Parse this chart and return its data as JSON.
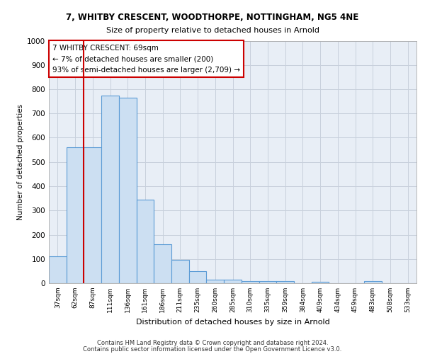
{
  "title1": "7, WHITBY CRESCENT, WOODTHORPE, NOTTINGHAM, NG5 4NE",
  "title2": "Size of property relative to detached houses in Arnold",
  "xlabel": "Distribution of detached houses by size in Arnold",
  "ylabel": "Number of detached properties",
  "categories": [
    "37sqm",
    "62sqm",
    "87sqm",
    "111sqm",
    "136sqm",
    "161sqm",
    "186sqm",
    "211sqm",
    "235sqm",
    "260sqm",
    "285sqm",
    "310sqm",
    "335sqm",
    "359sqm",
    "384sqm",
    "409sqm",
    "434sqm",
    "459sqm",
    "483sqm",
    "508sqm",
    "533sqm"
  ],
  "values": [
    110,
    560,
    560,
    775,
    765,
    345,
    160,
    95,
    50,
    15,
    15,
    10,
    10,
    8,
    0,
    5,
    0,
    0,
    10,
    0,
    0
  ],
  "bar_color": "#ccdff2",
  "bar_edge_color": "#5b9bd5",
  "grid_color": "#c8d0dc",
  "bg_color": "#e8eef6",
  "annotation_box_text": "7 WHITBY CRESCENT: 69sqm\n← 7% of detached houses are smaller (200)\n93% of semi-detached houses are larger (2,709) →",
  "annotation_box_color": "#cc0000",
  "vline_color": "#cc0000",
  "vline_x": 1.5,
  "ylim": [
    0,
    1000
  ],
  "yticks": [
    0,
    100,
    200,
    300,
    400,
    500,
    600,
    700,
    800,
    900,
    1000
  ],
  "footer1": "Contains HM Land Registry data © Crown copyright and database right 2024.",
  "footer2": "Contains public sector information licensed under the Open Government Licence v3.0."
}
